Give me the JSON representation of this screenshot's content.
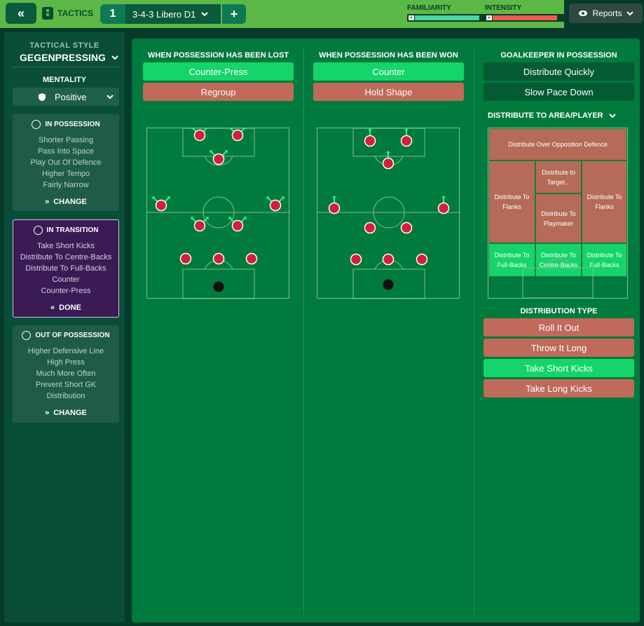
{
  "topbar": {
    "tactics_label": "TACTICS",
    "tab_number": "1",
    "tab_name": "3-4-3 Libero D1",
    "familiarity_label": "FAMILIARITY",
    "familiarity_value": 0.9,
    "intensity_label": "INTENSITY",
    "intensity_value": 0.9,
    "reports_label": "Reports"
  },
  "sidebar": {
    "tactical_style_label": "TACTICAL STYLE",
    "tactical_style_value": "GEGENPRESSING",
    "mentality_label": "MENTALITY",
    "mentality_value": "Positive",
    "in_possession": {
      "title": "IN POSSESSION",
      "items": [
        "Shorter Passing",
        "Pass Into Space",
        "Play Out Of Defence",
        "Higher Tempo",
        "Fairly Narrow"
      ],
      "action": "CHANGE"
    },
    "in_transition": {
      "title": "IN TRANSITION",
      "items": [
        "Take Short Kicks",
        "Distribute To Centre-Backs",
        "Distribute To Full-Backs",
        "Counter",
        "Counter-Press"
      ],
      "action": "DONE"
    },
    "out_of_possession": {
      "title": "OUT OF POSSESSION",
      "items": [
        "Higher Defensive Line",
        "High Press",
        "Much More Often",
        "Prevent Short GK",
        "Distribution"
      ],
      "action": "CHANGE"
    }
  },
  "lost": {
    "title": "WHEN POSSESSION HAS BEEN LOST",
    "options": [
      "Counter-Press",
      "Regroup"
    ]
  },
  "won": {
    "title": "WHEN POSSESSION HAS BEEN WON",
    "options": [
      "Counter",
      "Hold Shape"
    ]
  },
  "gk": {
    "title": "GOALKEEPER IN POSSESSION",
    "options": [
      "Distribute Quickly",
      "Slow Pace Down"
    ],
    "distribute_title": "DISTRIBUTE TO AREA/PLAYER",
    "zones": {
      "over": "Distribute Over Opposition Defence",
      "flanks_left": "Distribute To Flanks",
      "target": "Distribute to Target...",
      "playmaker": "Distribute To Playmaker",
      "flanks_right": "Distribute To Flanks",
      "fb_left": "Distribute To Full-Backs",
      "cb": "Distribute To Centre-Backs",
      "fb_right": "Distribute To Full-Backs"
    },
    "dist_type_title": "DISTRIBUTION TYPE",
    "dist_types": [
      "Roll It Out",
      "Throw It Long",
      "Take Short Kicks",
      "Take Long Kicks"
    ]
  }
}
